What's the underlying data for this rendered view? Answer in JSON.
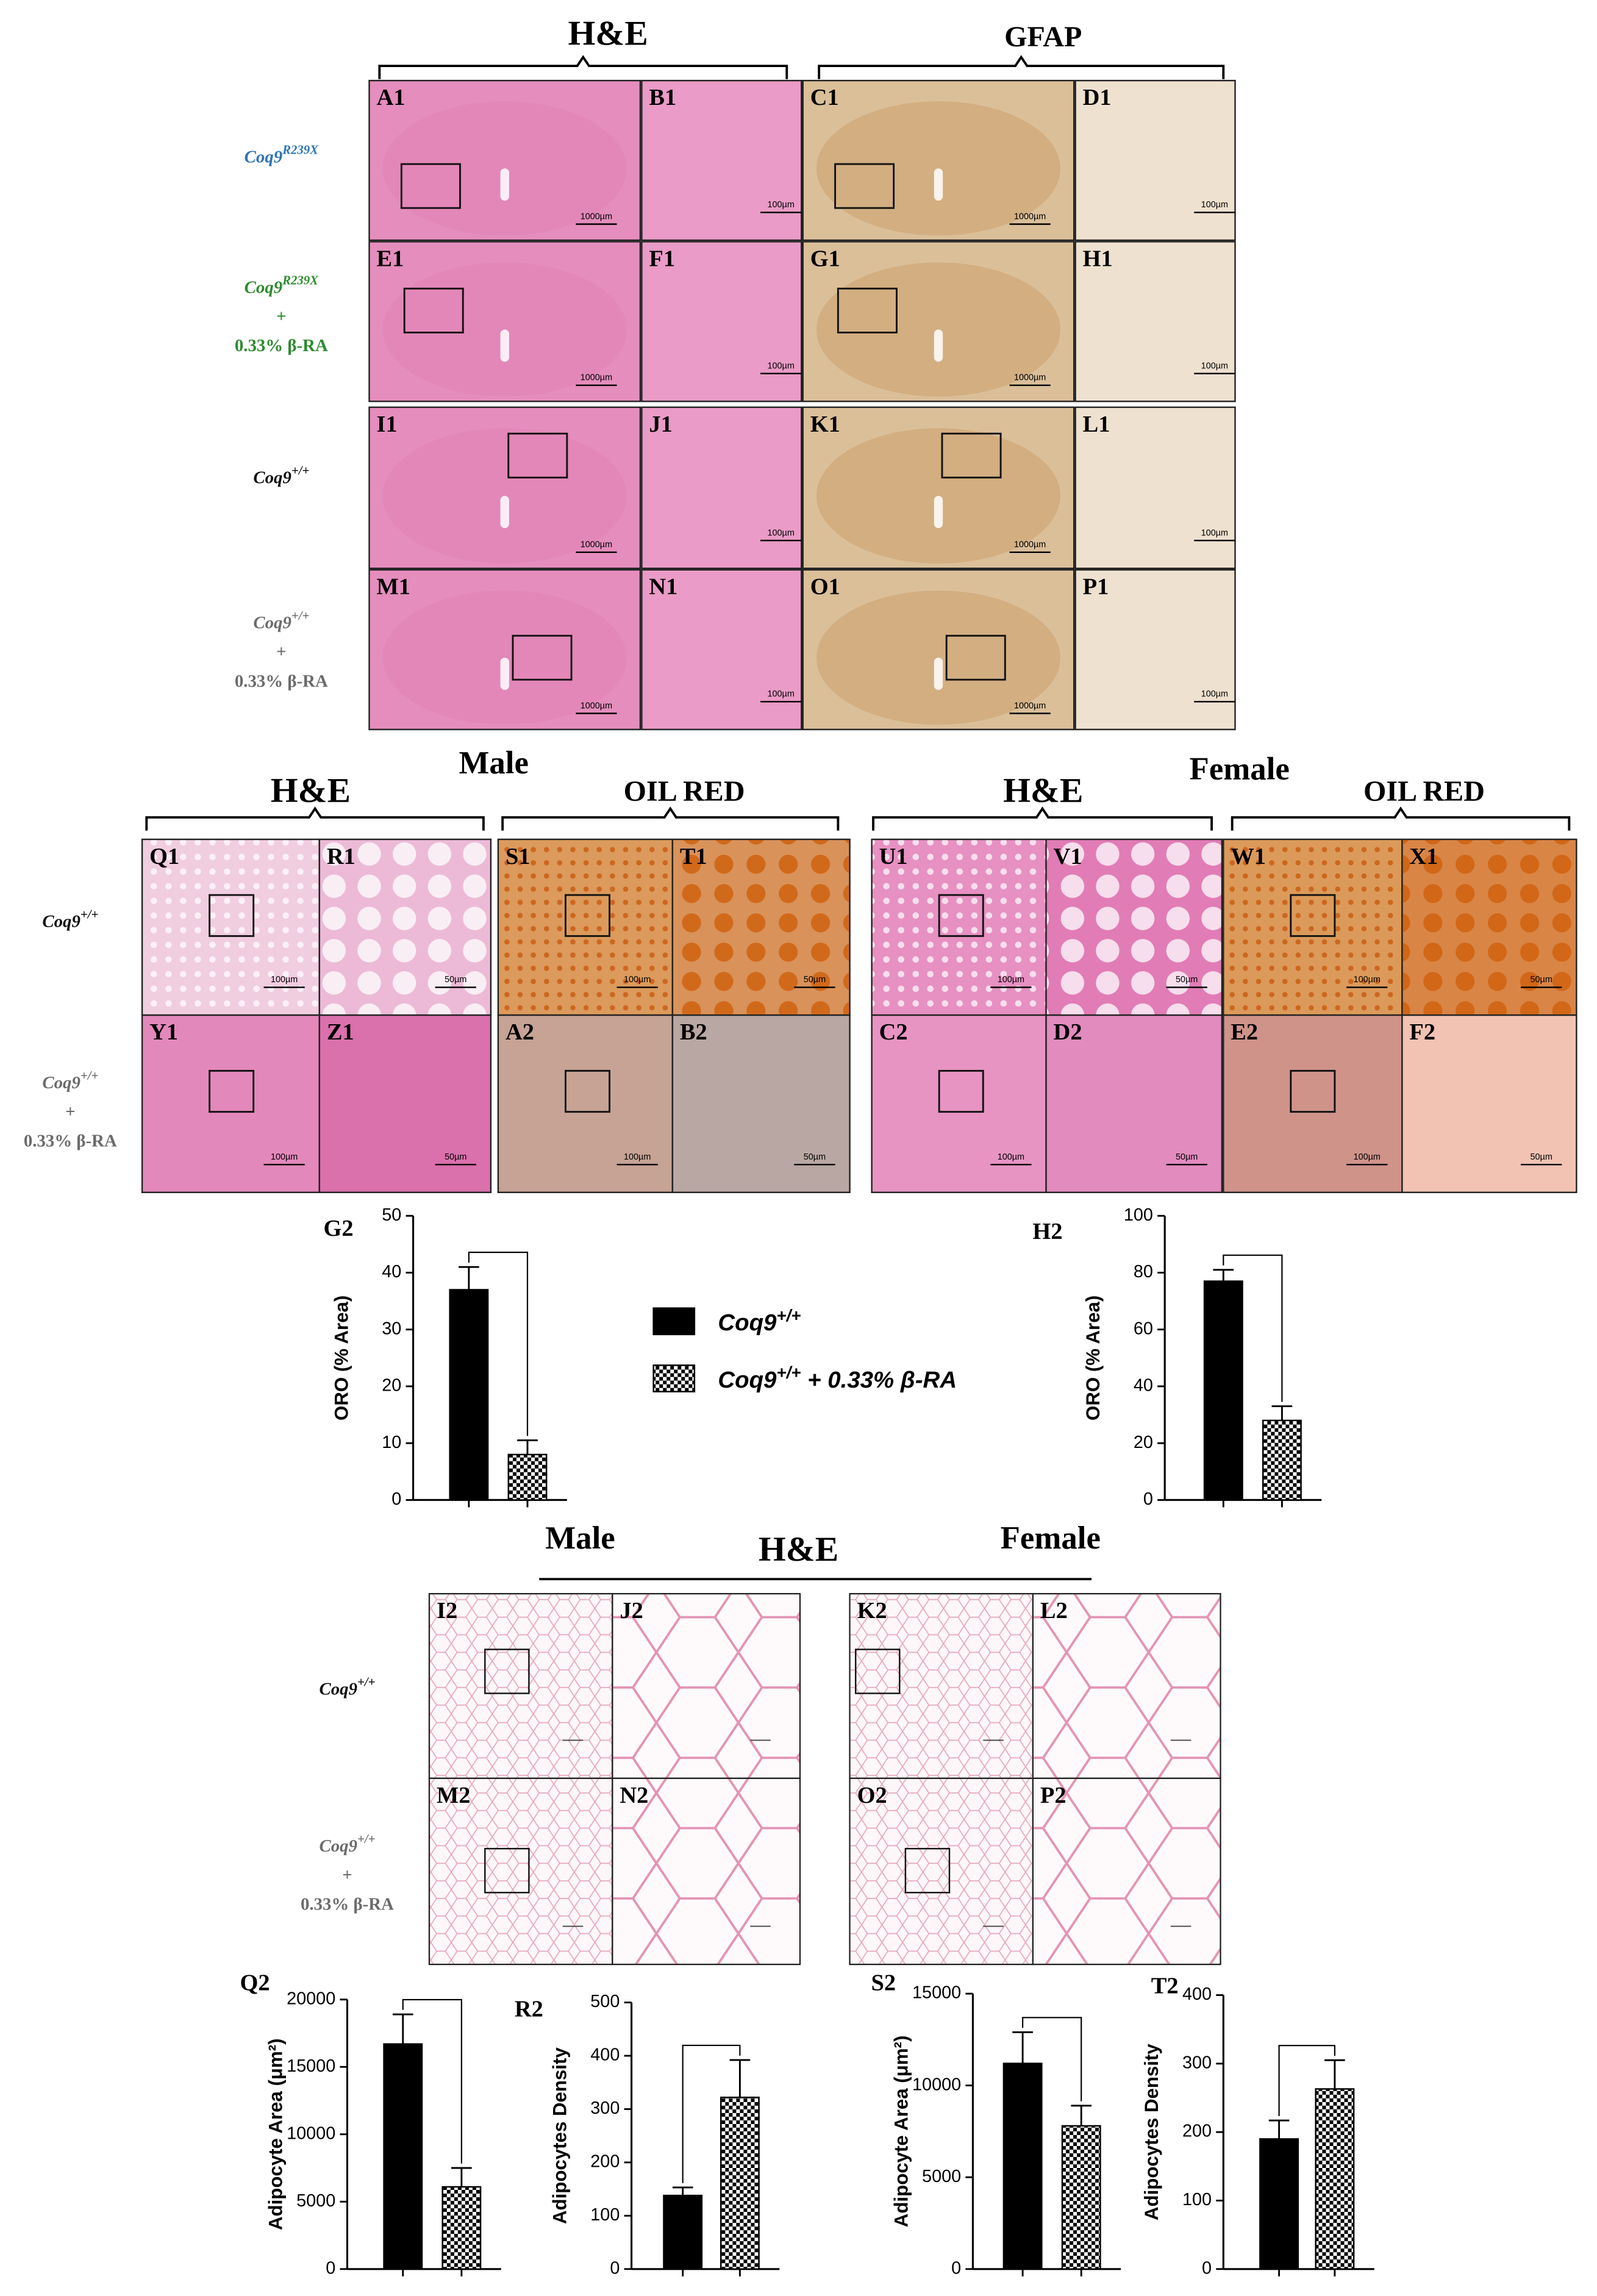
{
  "brain": {
    "headers": [
      "H&E",
      "GFAP"
    ],
    "row_labels": [
      [
        {
          "base": "Coq9",
          "sup": "R239X"
        }
      ],
      [
        {
          "base": "Coq9",
          "sup": "R239X"
        },
        "+",
        "0.33% β-RA"
      ],
      [
        {
          "base": "Coq9",
          "sup": "+/+"
        }
      ],
      [
        {
          "base": "Coq9",
          "sup": "+/+"
        },
        "+",
        "0.33% β-RA"
      ]
    ],
    "row_label_colors": [
      "#2e74b5",
      "#2e8b2e",
      "#111111",
      "#6b6b6b"
    ],
    "panels": [
      {
        "label": "A1",
        "scale": "1000µm"
      },
      {
        "label": "B1",
        "scale": "100µm"
      },
      {
        "label": "C1",
        "scale": "1000µm"
      },
      {
        "label": "D1",
        "scale": "100µm"
      },
      {
        "label": "E1",
        "scale": "1000µm"
      },
      {
        "label": "F1",
        "scale": "100µm"
      },
      {
        "label": "G1",
        "scale": "1000µm"
      },
      {
        "label": "H1",
        "scale": "100µm"
      },
      {
        "label": "I1",
        "scale": "1000µm"
      },
      {
        "label": "J1",
        "scale": "100µm"
      },
      {
        "label": "K1",
        "scale": "1000µm"
      },
      {
        "label": "L1",
        "scale": "100µm"
      },
      {
        "label": "M1",
        "scale": "1000µm"
      },
      {
        "label": "N1",
        "scale": "100µm"
      },
      {
        "label": "O1",
        "scale": "1000µm"
      },
      {
        "label": "P1",
        "scale": "100µm"
      }
    ]
  },
  "liver": {
    "sex_labels": [
      "Male",
      "Female"
    ],
    "headers": [
      "H&E",
      "OIL RED",
      "H&E",
      "OIL RED"
    ],
    "row_labels": [
      [
        {
          "base": "Coq9",
          "sup": "+/+"
        }
      ],
      [
        {
          "base": "Coq9",
          "sup": "+/+"
        },
        "+",
        "0.33% β-RA"
      ]
    ],
    "row_label_colors": [
      "#111111",
      "#6b6b6b"
    ],
    "panels": [
      {
        "label": "Q1",
        "scale": "100µm"
      },
      {
        "label": "R1",
        "scale": "50µm"
      },
      {
        "label": "S1",
        "scale": "100µm"
      },
      {
        "label": "T1",
        "scale": "50µm"
      },
      {
        "label": "U1",
        "scale": "100µm"
      },
      {
        "label": "V1",
        "scale": "50µm"
      },
      {
        "label": "W1",
        "scale": "100µm"
      },
      {
        "label": "X1",
        "scale": "50µm"
      },
      {
        "label": "Y1",
        "scale": "100µm"
      },
      {
        "label": "Z1",
        "scale": "50µm"
      },
      {
        "label": "A2",
        "scale": "100µm"
      },
      {
        "label": "B2",
        "scale": "50µm"
      },
      {
        "label": "C2",
        "scale": "100µm"
      },
      {
        "label": "D2",
        "scale": "50µm"
      },
      {
        "label": "E2",
        "scale": "100µm"
      },
      {
        "label": "F2",
        "scale": "50µm"
      }
    ]
  },
  "adipose": {
    "sex_labels": [
      "Male",
      "Female"
    ],
    "header": "H&E",
    "row_labels": [
      [
        {
          "base": "Coq9",
          "sup": "+/+"
        }
      ],
      [
        {
          "base": "Coq9",
          "sup": "+/+"
        },
        "+",
        "0.33% β-RA"
      ]
    ],
    "row_label_colors": [
      "#111111",
      "#6b6b6b"
    ],
    "panels": [
      {
        "label": "I2"
      },
      {
        "label": "J2"
      },
      {
        "label": "K2"
      },
      {
        "label": "L2"
      },
      {
        "label": "M2"
      },
      {
        "label": "N2"
      },
      {
        "label": "O2"
      },
      {
        "label": "P2"
      }
    ]
  },
  "legend": {
    "entries": [
      {
        "base": "Coq9",
        "sup": "+/+",
        "fill": "#000000",
        "pattern": "solid"
      },
      {
        "base": "Coq9",
        "sup": "+/+",
        "rest": " +  0.33% β-RA",
        "fill": "#000000",
        "pattern": "checkered"
      }
    ]
  },
  "chart_data": [
    {
      "type": "bar",
      "label": "G2",
      "ylabel": "ORO (% Area)",
      "categories": [
        null,
        null
      ],
      "values": [
        37,
        8
      ],
      "errors": [
        4,
        2.5
      ],
      "ylim": [
        0,
        50
      ],
      "yticks": [
        0,
        10,
        20,
        30,
        40,
        50
      ]
    },
    {
      "type": "bar",
      "label": "H2",
      "ylabel": "ORO (% Area)",
      "categories": [
        null,
        null
      ],
      "values": [
        77,
        28
      ],
      "errors": [
        4,
        5
      ],
      "ylim": [
        0,
        100
      ],
      "yticks": [
        0,
        20,
        40,
        60,
        80,
        100
      ]
    },
    {
      "type": "bar",
      "label": "Q2",
      "ylabel": "Adipocyte Area (μm²)",
      "categories": [
        null,
        null
      ],
      "values": [
        16700,
        6100
      ],
      "errors": [
        2200,
        1400
      ],
      "ylim": [
        0,
        20000
      ],
      "yticks": [
        0,
        5000,
        10000,
        15000,
        20000
      ]
    },
    {
      "type": "bar",
      "label": "R2",
      "ylabel": "Adipocytes Density",
      "categories": [
        null,
        null
      ],
      "values": [
        138,
        322
      ],
      "errors": [
        15,
        70
      ],
      "ylim": [
        0,
        500
      ],
      "yticks": [
        0,
        100,
        200,
        300,
        400,
        500
      ]
    },
    {
      "type": "bar",
      "label": "S2",
      "ylabel": "Adipocyte Area (μm²)",
      "categories": [
        null,
        null
      ],
      "values": [
        11200,
        7800
      ],
      "errors": [
        1700,
        1100
      ],
      "ylim": [
        0,
        15000
      ],
      "yticks": [
        0,
        5000,
        10000,
        15000
      ]
    },
    {
      "type": "bar",
      "label": "T2",
      "ylabel": "Adipocytes Density",
      "categories": [
        null,
        null
      ],
      "values": [
        190,
        263
      ],
      "errors": [
        27,
        42
      ],
      "ylim": [
        0,
        400
      ],
      "yticks": [
        0,
        100,
        200,
        300,
        400
      ]
    }
  ]
}
